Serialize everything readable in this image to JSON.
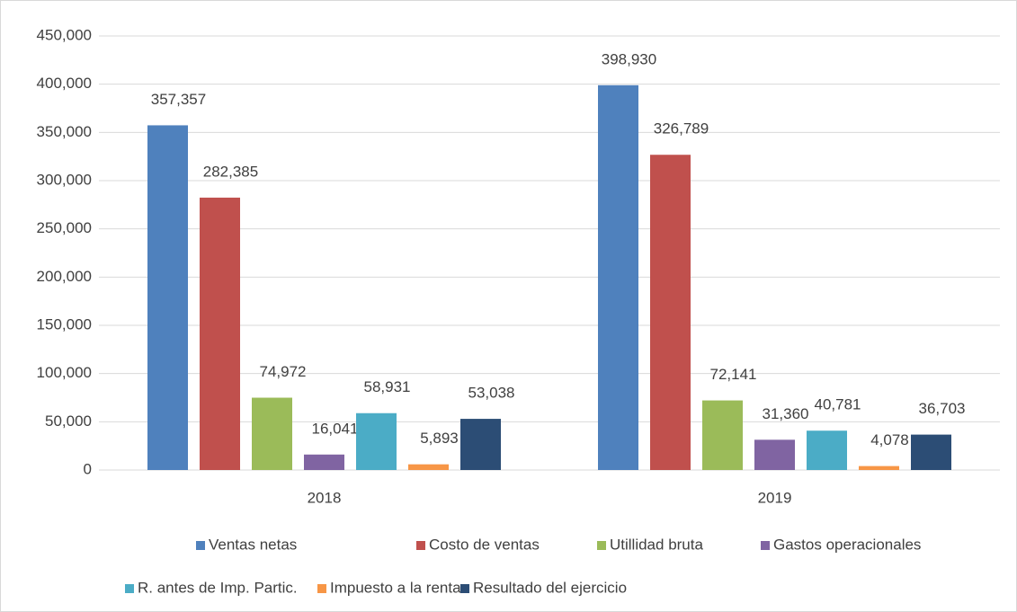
{
  "chart_data": {
    "type": "bar",
    "categories": [
      "2018",
      "2019"
    ],
    "series": [
      {
        "name": "Ventas netas",
        "color": "#4f81bd",
        "values": [
          357357,
          398930
        ],
        "value_labels": [
          "357,357",
          "398,930"
        ]
      },
      {
        "name": "Costo de ventas",
        "color": "#c0504d",
        "values": [
          282385,
          326789
        ],
        "value_labels": [
          "282,385",
          "326,789"
        ]
      },
      {
        "name": "Utillidad bruta",
        "color": "#9bbb59",
        "values": [
          74972,
          72141
        ],
        "value_labels": [
          "74,972",
          "72,141"
        ]
      },
      {
        "name": "Gastos operacionales",
        "color": "#8064a2",
        "values": [
          16041,
          31360
        ],
        "value_labels": [
          "16,041",
          "31,360"
        ]
      },
      {
        "name": "R. antes de Imp. Partic.",
        "color": "#4bacc6",
        "values": [
          58931,
          40781
        ],
        "value_labels": [
          "58,931",
          "40,781"
        ]
      },
      {
        "name": "Impuesto a la renta",
        "color": "#f79646",
        "values": [
          5893,
          4078
        ],
        "value_labels": [
          "5,893",
          "4,078"
        ]
      },
      {
        "name": "Resultado del ejercicio",
        "color": "#2c4d75",
        "values": [
          53038,
          36703
        ],
        "value_labels": [
          "53,038",
          "36,703"
        ]
      }
    ],
    "ylim": [
      0,
      450000
    ],
    "yticks": [
      0,
      {
        "value": 50000,
        "label": "50,000"
      },
      {
        "value": 100000,
        "label": "100,000"
      },
      {
        "value": 150000,
        "label": "150,000"
      },
      {
        "value": 200000,
        "label": "200,000"
      },
      {
        "value": 250000,
        "label": "250,000"
      },
      {
        "value": 300000,
        "label": "300,000"
      },
      {
        "value": 350000,
        "label": "350,000"
      },
      {
        "value": 400000,
        "label": "400,000"
      },
      {
        "value": 450000,
        "label": "450,000"
      }
    ],
    "grid": true,
    "legend": "bottom"
  }
}
